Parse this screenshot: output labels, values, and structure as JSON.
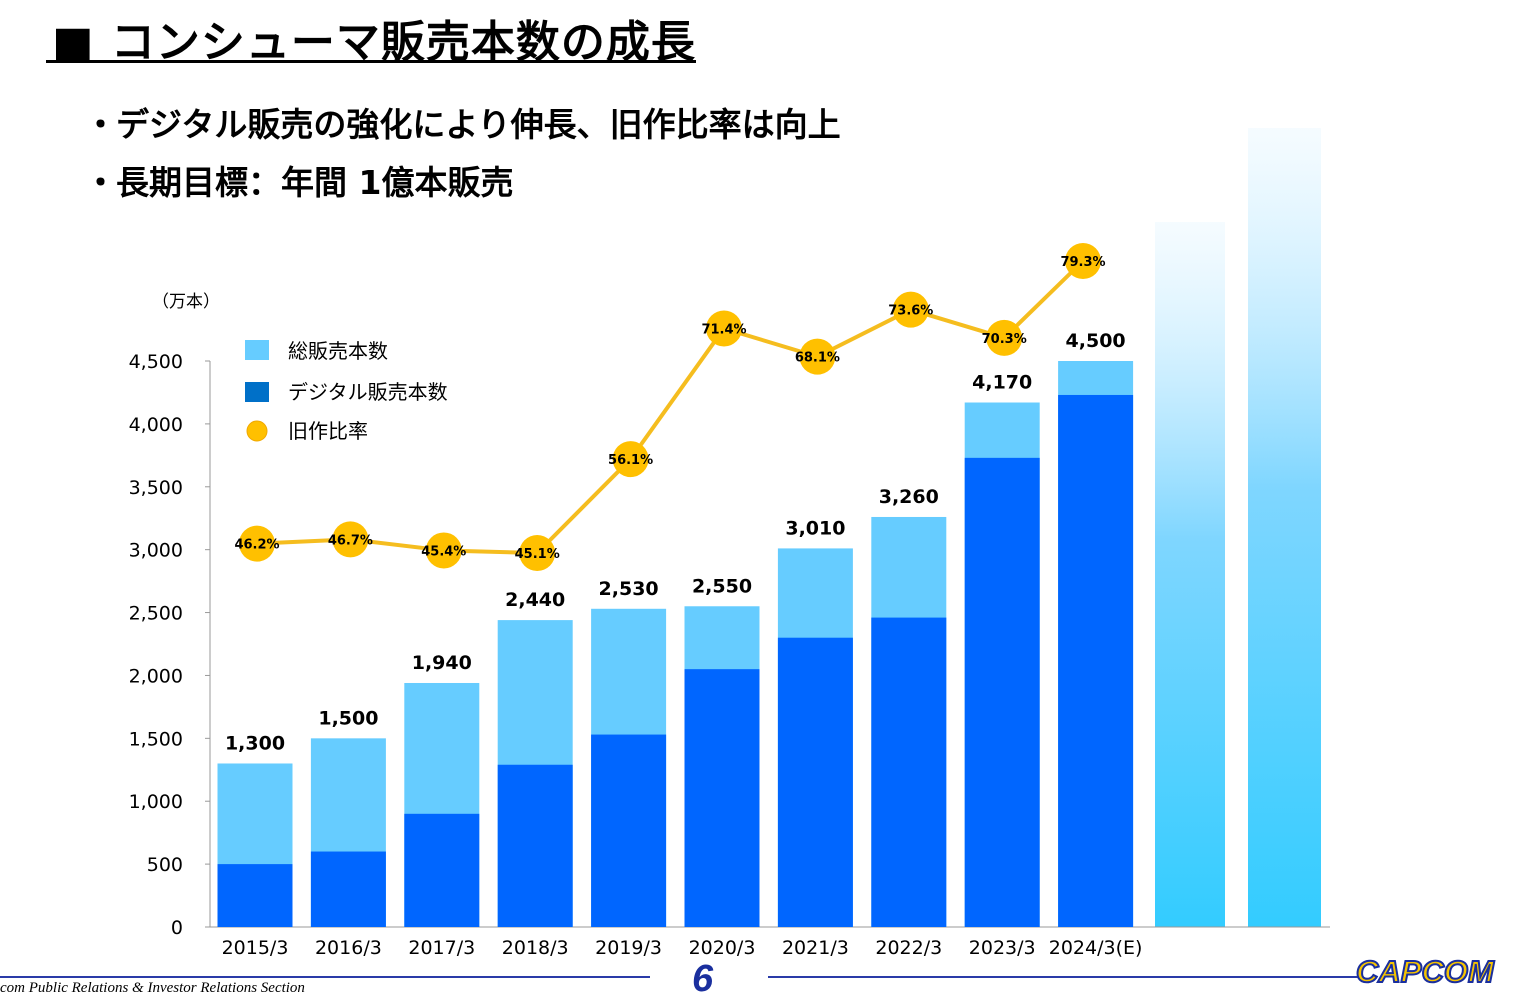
{
  "page": {
    "title": "■ コンシューマ販売本数の成長",
    "bullets": [
      "デジタル販売の強化により伸長、旧作比率は向上",
      "長期目標：年間 1億本販売"
    ],
    "footer": "com Public Relations & Investor Relations Section",
    "page_number": "6",
    "logo": "CAPCOM"
  },
  "colors": {
    "total": "#66ccff",
    "digital": "#0066ff",
    "ratio_line": "#f5bd1f",
    "ratio_marker": "#ffc000",
    "future_bar_top": "#e6f6ff",
    "future_bar_bottom": "#33ccff"
  },
  "chart_data": {
    "type": "bar",
    "unit_label": "（万本）",
    "categories": [
      "2015/3",
      "2016/3",
      "2017/3",
      "2018/3",
      "2019/3",
      "2020/3",
      "2021/3",
      "2022/3",
      "2023/3",
      "2024/3(E)"
    ],
    "series": [
      {
        "name": "総販売本数",
        "values": [
          1300,
          1500,
          1940,
          2440,
          2530,
          2550,
          3010,
          3260,
          4170,
          4500
        ],
        "labels": [
          "1,300",
          "1,500",
          "1,940",
          "2,440",
          "2,530",
          "2,550",
          "3,010",
          "3,260",
          "4,170",
          "4,500"
        ]
      },
      {
        "name": "デジタル販売本数",
        "values": [
          500,
          600,
          900,
          1290,
          1530,
          2050,
          2300,
          2460,
          3730,
          4230
        ]
      },
      {
        "name": "旧作比率",
        "type": "line",
        "values": [
          46.2,
          46.7,
          45.4,
          45.1,
          56.1,
          71.4,
          68.1,
          73.6,
          70.3,
          79.3
        ],
        "labels": [
          "46.2%",
          "46.7%",
          "45.4%",
          "45.1%",
          "56.1%",
          "71.4%",
          "68.1%",
          "73.6%",
          "70.3%",
          "79.3%"
        ]
      }
    ],
    "yticks": [
      "0",
      "500",
      "1,000",
      "1,500",
      "2,000",
      "2,500",
      "3,000",
      "3,500",
      "4,000",
      "4,500"
    ],
    "ylim": [
      0,
      4500
    ],
    "legend": "top-left",
    "grid": false
  }
}
